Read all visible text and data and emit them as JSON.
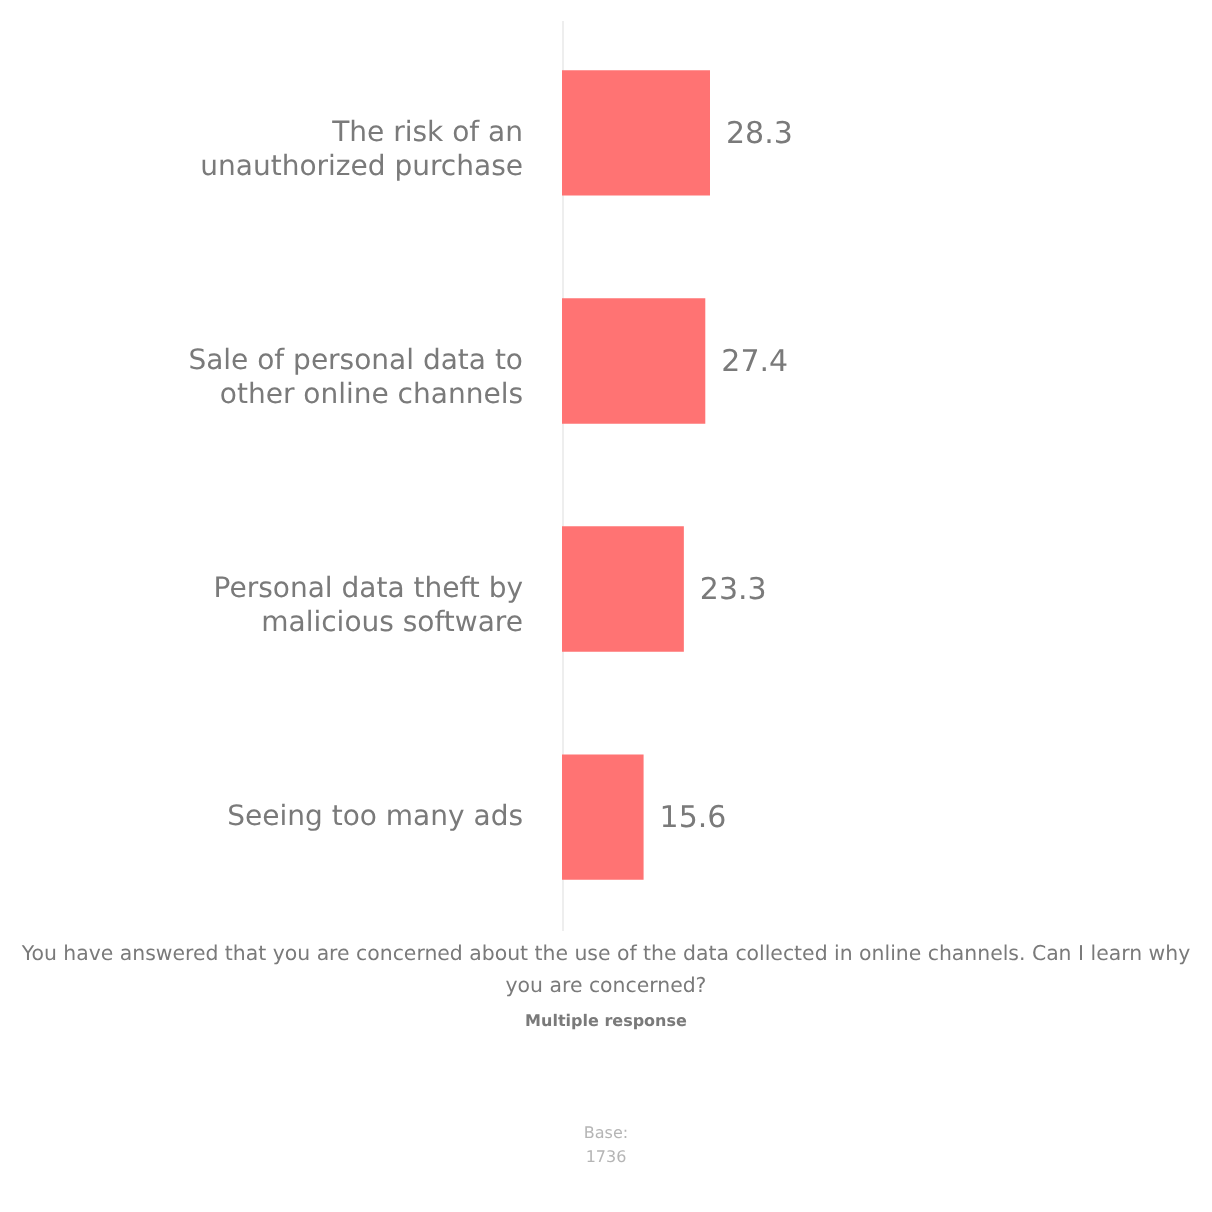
{
  "chart_data": {
    "type": "bar",
    "orientation": "horizontal",
    "categories": [
      "The risk of an unauthorized purchase",
      "Sale of personal data to other online channels",
      "Personal data theft by malicious software",
      "Seeing too many ads"
    ],
    "values": [
      28.3,
      27.4,
      23.3,
      15.6
    ],
    "color": "#ff7373",
    "tick_labels": "y",
    "data_labels": true,
    "annotations": [
      "You have answered that you are concerned about the use of the data collected in online channels. Can I learn why you are concerned?",
      "Multiple response",
      "Base: 1736"
    ]
  }
}
